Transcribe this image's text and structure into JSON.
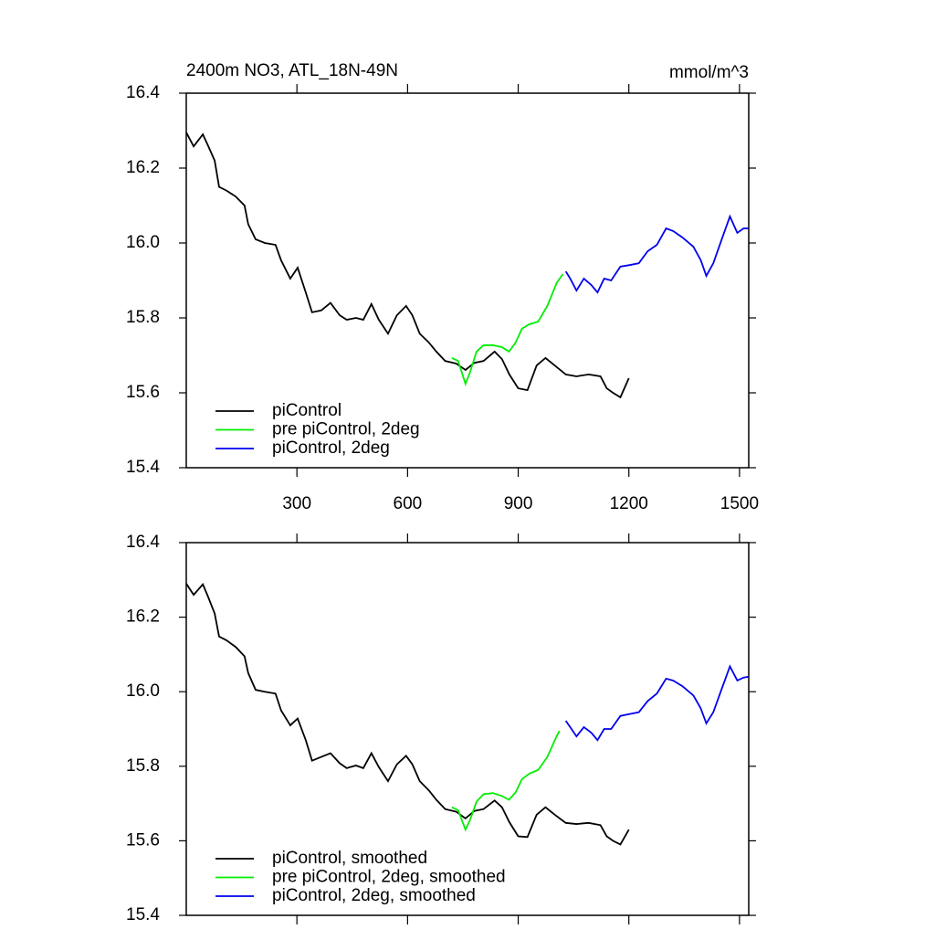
{
  "chart_data": [
    {
      "type": "line",
      "title": "2400m NO3, ATL_18N-49N",
      "units": "mmol/m^3",
      "xlim": [
        0,
        1525
      ],
      "xticks": [
        300,
        600,
        900,
        1200,
        1500
      ],
      "show_xtick_labels": true,
      "ylim": [
        15.4,
        16.4
      ],
      "yticks": [
        {
          "value": 15.4,
          "label": "15.4"
        },
        {
          "value": 15.6,
          "label": "15.6"
        },
        {
          "value": 15.8,
          "label": "15.8"
        },
        {
          "value": 16.0,
          "label": "16.0"
        },
        {
          "value": 16.2,
          "label": "16.2"
        },
        {
          "value": 16.4,
          "label": "16.4"
        }
      ],
      "series": [
        {
          "name": "piControl",
          "color": "#000000",
          "x": [
            0,
            20,
            45,
            59,
            77,
            89,
            109,
            134,
            158,
            168,
            188,
            213,
            242,
            257,
            282,
            302,
            324,
            341,
            366,
            391,
            416,
            435,
            460,
            480,
            502,
            522,
            547,
            571,
            596,
            613,
            633,
            658,
            678,
            702,
            732,
            757,
            781,
            806,
            836,
            856,
            876,
            900,
            925,
            950,
            974,
            999,
            1029,
            1058,
            1091,
            1123,
            1140,
            1157,
            1177,
            1200
          ],
          "values": [
            16.295,
            16.258,
            16.29,
            16.26,
            16.22,
            16.15,
            16.14,
            16.124,
            16.1,
            16.05,
            16.01,
            16.0,
            15.995,
            15.954,
            15.905,
            15.934,
            15.868,
            15.815,
            15.82,
            15.84,
            15.807,
            15.795,
            15.8,
            15.795,
            15.837,
            15.795,
            15.758,
            15.807,
            15.832,
            15.807,
            15.758,
            15.734,
            15.71,
            15.685,
            15.678,
            15.661,
            15.68,
            15.685,
            15.71,
            15.69,
            15.649,
            15.612,
            15.607,
            15.673,
            15.693,
            15.673,
            15.649,
            15.644,
            15.649,
            15.644,
            15.612,
            15.6,
            15.588,
            15.639
          ]
        },
        {
          "name": "pre piControl, 2deg",
          "color": "#00ee00",
          "x": [
            720,
            737,
            757,
            769,
            787,
            806,
            831,
            856,
            875,
            893,
            910,
            930,
            954,
            979,
            1004,
            1021
          ],
          "values": [
            15.693,
            15.685,
            15.624,
            15.654,
            15.71,
            15.727,
            15.727,
            15.722,
            15.71,
            15.734,
            15.771,
            15.783,
            15.79,
            15.832,
            15.893,
            15.917
          ]
        },
        {
          "name": "piControl, 2deg",
          "color": "#0000ee",
          "x": [
            1029,
            1041,
            1058,
            1078,
            1098,
            1115,
            1133,
            1152,
            1177,
            1202,
            1227,
            1251,
            1276,
            1301,
            1320,
            1345,
            1375,
            1395,
            1410,
            1429,
            1449,
            1474,
            1494,
            1511,
            1524
          ],
          "values": [
            15.924,
            15.905,
            15.873,
            15.905,
            15.888,
            15.868,
            15.905,
            15.9,
            15.937,
            15.941,
            15.946,
            15.978,
            15.995,
            16.039,
            16.032,
            16.015,
            15.99,
            15.954,
            15.912,
            15.946,
            16.002,
            16.071,
            16.027,
            16.039,
            16.039
          ]
        }
      ]
    },
    {
      "type": "line",
      "xlim": [
        0,
        1525
      ],
      "xticks": [
        300,
        600,
        900,
        1200,
        1500
      ],
      "show_xtick_labels": false,
      "ylim": [
        15.4,
        16.4
      ],
      "yticks": [
        {
          "value": 15.4,
          "label": "15.4"
        },
        {
          "value": 15.6,
          "label": "15.6"
        },
        {
          "value": 15.8,
          "label": "15.8"
        },
        {
          "value": 16.0,
          "label": "16.0"
        },
        {
          "value": 16.2,
          "label": "16.2"
        },
        {
          "value": 16.4,
          "label": "16.4"
        }
      ],
      "series": [
        {
          "name": "piControl, smoothed",
          "color": "#000000",
          "x": [
            0,
            20,
            45,
            59,
            77,
            89,
            109,
            134,
            158,
            168,
            188,
            213,
            242,
            257,
            282,
            302,
            324,
            341,
            366,
            391,
            416,
            435,
            460,
            480,
            502,
            522,
            547,
            571,
            596,
            613,
            633,
            658,
            678,
            702,
            732,
            757,
            781,
            806,
            836,
            856,
            876,
            900,
            925,
            950,
            974,
            999,
            1029,
            1058,
            1091,
            1123,
            1140,
            1157,
            1177,
            1200
          ],
          "values": [
            16.29,
            16.26,
            16.288,
            16.255,
            16.21,
            16.148,
            16.138,
            16.12,
            16.095,
            16.05,
            16.005,
            16.0,
            15.995,
            15.95,
            15.91,
            15.928,
            15.87,
            15.815,
            15.825,
            15.835,
            15.808,
            15.795,
            15.802,
            15.795,
            15.835,
            15.798,
            15.76,
            15.805,
            15.828,
            15.805,
            15.76,
            15.735,
            15.71,
            15.685,
            15.678,
            15.66,
            15.68,
            15.685,
            15.708,
            15.69,
            15.65,
            15.612,
            15.61,
            15.67,
            15.69,
            15.67,
            15.648,
            15.645,
            15.648,
            15.642,
            15.612,
            15.6,
            15.59,
            15.63
          ]
        },
        {
          "name": "pre piControl, 2deg, smoothed",
          "color": "#00ee00",
          "x": [
            720,
            737,
            757,
            769,
            787,
            806,
            831,
            856,
            875,
            893,
            910,
            930,
            954,
            979,
            1004,
            1012
          ],
          "values": [
            15.69,
            15.682,
            15.63,
            15.655,
            15.705,
            15.725,
            15.728,
            15.72,
            15.71,
            15.73,
            15.765,
            15.78,
            15.79,
            15.825,
            15.88,
            15.895
          ]
        },
        {
          "name": "piControl, 2deg, smoothed",
          "color": "#0000ee",
          "x": [
            1029,
            1041,
            1058,
            1078,
            1098,
            1115,
            1133,
            1152,
            1177,
            1202,
            1227,
            1251,
            1276,
            1301,
            1320,
            1345,
            1375,
            1395,
            1410,
            1429,
            1449,
            1474,
            1494,
            1511,
            1524
          ],
          "values": [
            15.922,
            15.905,
            15.88,
            15.905,
            15.89,
            15.87,
            15.9,
            15.9,
            15.935,
            15.94,
            15.945,
            15.975,
            15.995,
            16.035,
            16.03,
            16.015,
            15.99,
            15.955,
            15.915,
            15.945,
            16.0,
            16.068,
            16.03,
            16.038,
            16.04
          ]
        }
      ]
    }
  ]
}
